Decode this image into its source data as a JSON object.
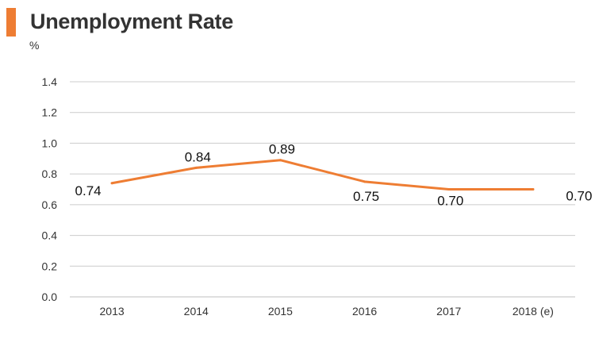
{
  "header": {
    "title": "Unemployment Rate",
    "unit_label": "%",
    "accent_color": "#ee7d33"
  },
  "chart_data": {
    "type": "line",
    "title": "Unemployment Rate",
    "ylabel": "%",
    "xlabel": "",
    "categories": [
      "2013",
      "2014",
      "2015",
      "2016",
      "2017",
      "2018 (e)"
    ],
    "series": [
      {
        "values": [
          0.74,
          0.84,
          0.89,
          0.75,
          0.7,
          0.7
        ]
      }
    ],
    "data_labels": [
      "0.74",
      "0.84",
      "0.89",
      "0.75",
      "0.70",
      "0.70"
    ],
    "ylim": [
      0,
      1.4
    ],
    "yticks": [
      0.0,
      0.2,
      0.4,
      0.6,
      0.8,
      1.0,
      1.2,
      1.4
    ],
    "ytick_labels": [
      "0.0",
      "0.2",
      "0.4",
      "0.6",
      "0.8",
      "1.0",
      "1.2",
      "1.4"
    ],
    "grid": "horizontal",
    "line_color": "#ee7d33",
    "grid_color": "#cccccc"
  }
}
